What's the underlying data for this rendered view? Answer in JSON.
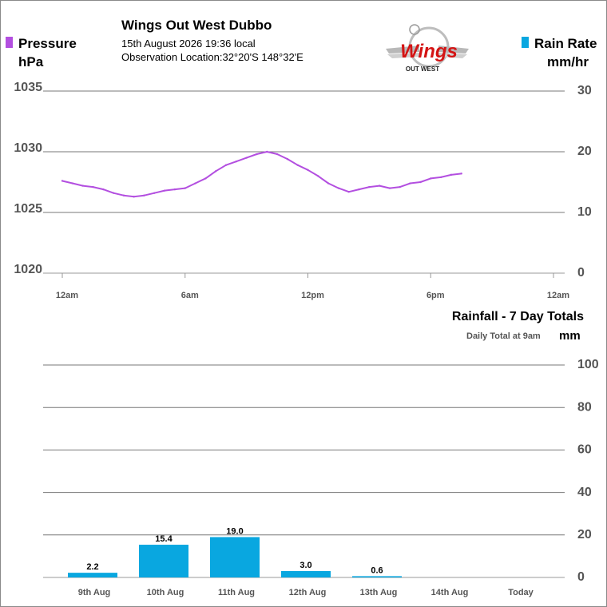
{
  "header": {
    "title": "Wings Out West Dubbo",
    "date_line": "15th August 2026  19:36 local",
    "location_line": "Observation Location:32°20'S 148°32'E"
  },
  "logo": {
    "wordmark": "Wings",
    "tagline": "OUT WEST"
  },
  "colors": {
    "pressure": "#b34fe0",
    "rain": "#09a7e0",
    "grid": "#777777",
    "axis_text": "#555555"
  },
  "legend": {
    "pressure_label": "Pressure",
    "pressure_unit": "hPa",
    "rain_label": "Rain Rate",
    "rain_unit": "mm/hr"
  },
  "rainfall_panel": {
    "title": "Rainfall - 7 Day Totals",
    "subtitle": "Daily Total at 9am",
    "unit": "mm"
  },
  "chart_data": [
    {
      "type": "line",
      "series": [
        {
          "name": "Pressure",
          "axis": "left",
          "x_hours": [
            0,
            0.5,
            1,
            1.5,
            2,
            2.5,
            3,
            3.5,
            4,
            4.5,
            5,
            5.5,
            6,
            6.5,
            7,
            7.5,
            8,
            8.5,
            9,
            9.5,
            10,
            10.5,
            11,
            11.5,
            12,
            12.5,
            13,
            13.5,
            14,
            14.5,
            15,
            15.5,
            16,
            16.5,
            17,
            17.5,
            18,
            18.5,
            19,
            19.5
          ],
          "values": [
            1027.6,
            1027.4,
            1027.2,
            1027.1,
            1026.9,
            1026.6,
            1026.4,
            1026.3,
            1026.4,
            1026.6,
            1026.8,
            1026.9,
            1027.0,
            1027.4,
            1027.8,
            1028.4,
            1028.9,
            1029.2,
            1029.5,
            1029.8,
            1030.0,
            1029.8,
            1029.4,
            1028.9,
            1028.5,
            1028.0,
            1027.4,
            1027.0,
            1026.7,
            1026.9,
            1027.1,
            1027.2,
            1027.0,
            1027.1,
            1027.4,
            1027.5,
            1027.8,
            1027.9,
            1028.1,
            1028.2
          ]
        },
        {
          "name": "Rain Rate",
          "axis": "right",
          "values": []
        }
      ],
      "x_tick_labels": [
        "12am",
        "6am",
        "12pm",
        "6pm",
        "12am"
      ],
      "x_range_hours": [
        0,
        24
      ],
      "y_left": {
        "ticks": [
          1020,
          1025,
          1030,
          1035
        ],
        "range": [
          1020,
          1035
        ]
      },
      "y_right": {
        "ticks": [
          0,
          10,
          20,
          30
        ],
        "range": [
          0,
          30
        ]
      },
      "grid": "horizontal"
    },
    {
      "type": "bar",
      "categories": [
        "9th Aug",
        "10th Aug",
        "11th Aug",
        "12th Aug",
        "13th Aug",
        "14th Aug",
        "Today"
      ],
      "values": [
        2.2,
        15.4,
        19.0,
        3.0,
        0.6,
        0,
        0
      ],
      "data_labels": [
        "2.2",
        "15.4",
        "19.0",
        "3.0",
        "0.6",
        "",
        ""
      ],
      "y_ticks": [
        0,
        20,
        40,
        60,
        80,
        100
      ],
      "ylim": [
        0,
        100
      ],
      "grid": "horizontal",
      "y_axis_position": "right"
    }
  ]
}
